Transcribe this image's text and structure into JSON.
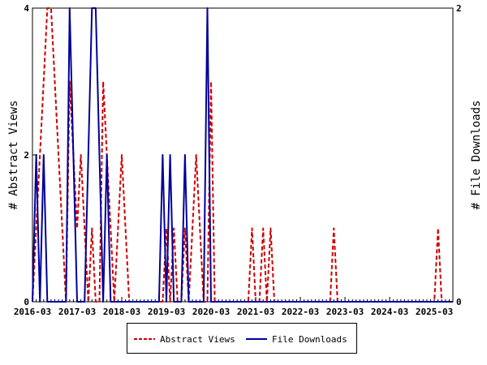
{
  "chart_data": {
    "type": "line",
    "title": "",
    "ylabel_left": "# Abstract Views",
    "ylabel_right": "# File Downloads",
    "xlabel": "",
    "x_tick_labels": [
      "2016-03",
      "2017-03",
      "2018-03",
      "2019-03",
      "2020-03",
      "2021-03",
      "2022-03",
      "2023-03",
      "2024-03",
      "2025-03"
    ],
    "x_range": [
      "2016-03",
      "2025-08"
    ],
    "ylim_left": [
      0,
      4
    ],
    "ylim_right": [
      0,
      2
    ],
    "y_ticks_left": [
      0,
      2,
      4
    ],
    "y_ticks_right": [
      0,
      2
    ],
    "legend_position": "bottom",
    "grid": false,
    "series": [
      {
        "name": "Abstract Views",
        "axis": "left",
        "color": "#cc0000",
        "style": "dashed",
        "points": [
          [
            "2016-03",
            0
          ],
          [
            "2016-04",
            1
          ],
          [
            "2016-05",
            2
          ],
          [
            "2016-06",
            3
          ],
          [
            "2016-07",
            4
          ],
          [
            "2016-08",
            4
          ],
          [
            "2016-09",
            3
          ],
          [
            "2016-10",
            2
          ],
          [
            "2016-11",
            1
          ],
          [
            "2016-12",
            0
          ],
          [
            "2017-01",
            3
          ],
          [
            "2017-02",
            2
          ],
          [
            "2017-03",
            1
          ],
          [
            "2017-04",
            2
          ],
          [
            "2017-05",
            1
          ],
          [
            "2017-06",
            0
          ],
          [
            "2017-07",
            1
          ],
          [
            "2017-08",
            0
          ],
          [
            "2017-09",
            0
          ],
          [
            "2017-10",
            3
          ],
          [
            "2017-11",
            2
          ],
          [
            "2017-12",
            1
          ],
          [
            "2018-01",
            0
          ],
          [
            "2018-02",
            1
          ],
          [
            "2018-03",
            2
          ],
          [
            "2018-04",
            1
          ],
          [
            "2018-05",
            0
          ],
          [
            "2018-06",
            0
          ],
          [
            "2019-02",
            0
          ],
          [
            "2019-03",
            1
          ],
          [
            "2019-04",
            0
          ],
          [
            "2019-05",
            1
          ],
          [
            "2019-06",
            0
          ],
          [
            "2019-07",
            0
          ],
          [
            "2019-08",
            1
          ],
          [
            "2019-09",
            0
          ],
          [
            "2019-10",
            1
          ],
          [
            "2019-11",
            2
          ],
          [
            "2019-12",
            1
          ],
          [
            "2020-01",
            0
          ],
          [
            "2020-02",
            0
          ],
          [
            "2020-03",
            3
          ],
          [
            "2020-04",
            0
          ],
          [
            "2021-01",
            0
          ],
          [
            "2021-02",
            1
          ],
          [
            "2021-03",
            0
          ],
          [
            "2021-04",
            0
          ],
          [
            "2021-05",
            1
          ],
          [
            "2021-06",
            0
          ],
          [
            "2021-07",
            1
          ],
          [
            "2021-08",
            0
          ],
          [
            "2022-11",
            0
          ],
          [
            "2022-12",
            1
          ],
          [
            "2023-01",
            0
          ],
          [
            "2025-03",
            0
          ],
          [
            "2025-04",
            1
          ],
          [
            "2025-05",
            0
          ],
          [
            "2025-08",
            0
          ]
        ]
      },
      {
        "name": "File Downloads",
        "axis": "right",
        "color": "#000099",
        "style": "solid",
        "points": [
          [
            "2016-03",
            0
          ],
          [
            "2016-04",
            1
          ],
          [
            "2016-05",
            0
          ],
          [
            "2016-06",
            1
          ],
          [
            "2016-07",
            0
          ],
          [
            "2016-08",
            0
          ],
          [
            "2016-12",
            0
          ],
          [
            "2017-01",
            2
          ],
          [
            "2017-02",
            1
          ],
          [
            "2017-03",
            0
          ],
          [
            "2017-04",
            0
          ],
          [
            "2017-05",
            0
          ],
          [
            "2017-06",
            1
          ],
          [
            "2017-07",
            2
          ],
          [
            "2017-08",
            2
          ],
          [
            "2017-09",
            1
          ],
          [
            "2017-10",
            0
          ],
          [
            "2017-11",
            1
          ],
          [
            "2017-12",
            0
          ],
          [
            "2018-01",
            0
          ],
          [
            "2019-01",
            0
          ],
          [
            "2019-02",
            1
          ],
          [
            "2019-03",
            0
          ],
          [
            "2019-04",
            1
          ],
          [
            "2019-05",
            0
          ],
          [
            "2019-06",
            0
          ],
          [
            "2019-07",
            0
          ],
          [
            "2019-08",
            1
          ],
          [
            "2019-09",
            0
          ],
          [
            "2019-10",
            0
          ],
          [
            "2019-11",
            0
          ],
          [
            "2019-12",
            0
          ],
          [
            "2020-01",
            0
          ],
          [
            "2020-02",
            2
          ],
          [
            "2020-03",
            0
          ],
          [
            "2020-04",
            0
          ],
          [
            "2025-08",
            0
          ]
        ]
      }
    ]
  }
}
